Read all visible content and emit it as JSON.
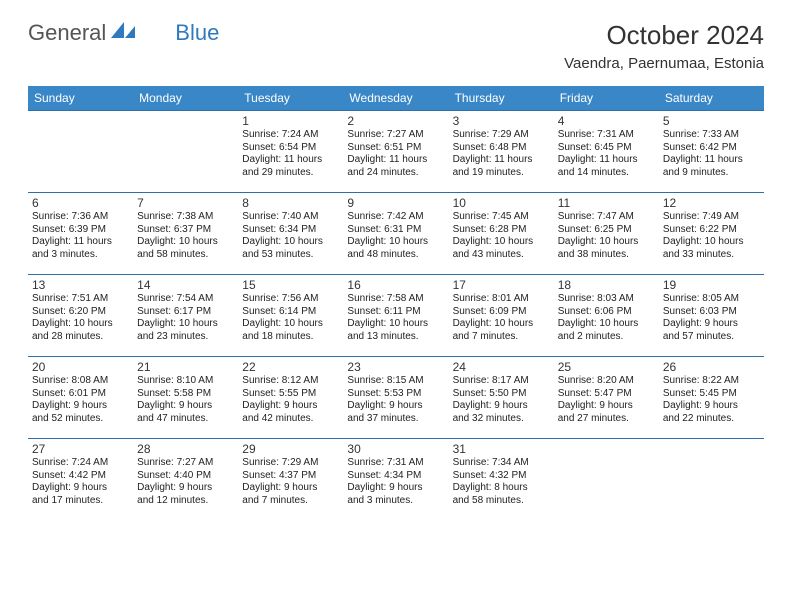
{
  "branding": {
    "logo_general": "General",
    "logo_blue": "Blue",
    "logo_icon_color": "#2f7abf"
  },
  "header": {
    "month_title": "October 2024",
    "location": "Vaendra, Paernumaa, Estonia"
  },
  "calendar": {
    "type": "table",
    "header_bg": "#3a87c8",
    "header_fg": "#ffffff",
    "row_border_color": "#2f6fa8",
    "day_headers": [
      "Sunday",
      "Monday",
      "Tuesday",
      "Wednesday",
      "Thursday",
      "Friday",
      "Saturday"
    ],
    "weeks": [
      [
        null,
        null,
        {
          "n": "1",
          "sr": "Sunrise: 7:24 AM",
          "ss": "Sunset: 6:54 PM",
          "dl1": "Daylight: 11 hours",
          "dl2": "and 29 minutes."
        },
        {
          "n": "2",
          "sr": "Sunrise: 7:27 AM",
          "ss": "Sunset: 6:51 PM",
          "dl1": "Daylight: 11 hours",
          "dl2": "and 24 minutes."
        },
        {
          "n": "3",
          "sr": "Sunrise: 7:29 AM",
          "ss": "Sunset: 6:48 PM",
          "dl1": "Daylight: 11 hours",
          "dl2": "and 19 minutes."
        },
        {
          "n": "4",
          "sr": "Sunrise: 7:31 AM",
          "ss": "Sunset: 6:45 PM",
          "dl1": "Daylight: 11 hours",
          "dl2": "and 14 minutes."
        },
        {
          "n": "5",
          "sr": "Sunrise: 7:33 AM",
          "ss": "Sunset: 6:42 PM",
          "dl1": "Daylight: 11 hours",
          "dl2": "and 9 minutes."
        }
      ],
      [
        {
          "n": "6",
          "sr": "Sunrise: 7:36 AM",
          "ss": "Sunset: 6:39 PM",
          "dl1": "Daylight: 11 hours",
          "dl2": "and 3 minutes."
        },
        {
          "n": "7",
          "sr": "Sunrise: 7:38 AM",
          "ss": "Sunset: 6:37 PM",
          "dl1": "Daylight: 10 hours",
          "dl2": "and 58 minutes."
        },
        {
          "n": "8",
          "sr": "Sunrise: 7:40 AM",
          "ss": "Sunset: 6:34 PM",
          "dl1": "Daylight: 10 hours",
          "dl2": "and 53 minutes."
        },
        {
          "n": "9",
          "sr": "Sunrise: 7:42 AM",
          "ss": "Sunset: 6:31 PM",
          "dl1": "Daylight: 10 hours",
          "dl2": "and 48 minutes."
        },
        {
          "n": "10",
          "sr": "Sunrise: 7:45 AM",
          "ss": "Sunset: 6:28 PM",
          "dl1": "Daylight: 10 hours",
          "dl2": "and 43 minutes."
        },
        {
          "n": "11",
          "sr": "Sunrise: 7:47 AM",
          "ss": "Sunset: 6:25 PM",
          "dl1": "Daylight: 10 hours",
          "dl2": "and 38 minutes."
        },
        {
          "n": "12",
          "sr": "Sunrise: 7:49 AM",
          "ss": "Sunset: 6:22 PM",
          "dl1": "Daylight: 10 hours",
          "dl2": "and 33 minutes."
        }
      ],
      [
        {
          "n": "13",
          "sr": "Sunrise: 7:51 AM",
          "ss": "Sunset: 6:20 PM",
          "dl1": "Daylight: 10 hours",
          "dl2": "and 28 minutes."
        },
        {
          "n": "14",
          "sr": "Sunrise: 7:54 AM",
          "ss": "Sunset: 6:17 PM",
          "dl1": "Daylight: 10 hours",
          "dl2": "and 23 minutes."
        },
        {
          "n": "15",
          "sr": "Sunrise: 7:56 AM",
          "ss": "Sunset: 6:14 PM",
          "dl1": "Daylight: 10 hours",
          "dl2": "and 18 minutes."
        },
        {
          "n": "16",
          "sr": "Sunrise: 7:58 AM",
          "ss": "Sunset: 6:11 PM",
          "dl1": "Daylight: 10 hours",
          "dl2": "and 13 minutes."
        },
        {
          "n": "17",
          "sr": "Sunrise: 8:01 AM",
          "ss": "Sunset: 6:09 PM",
          "dl1": "Daylight: 10 hours",
          "dl2": "and 7 minutes."
        },
        {
          "n": "18",
          "sr": "Sunrise: 8:03 AM",
          "ss": "Sunset: 6:06 PM",
          "dl1": "Daylight: 10 hours",
          "dl2": "and 2 minutes."
        },
        {
          "n": "19",
          "sr": "Sunrise: 8:05 AM",
          "ss": "Sunset: 6:03 PM",
          "dl1": "Daylight: 9 hours",
          "dl2": "and 57 minutes."
        }
      ],
      [
        {
          "n": "20",
          "sr": "Sunrise: 8:08 AM",
          "ss": "Sunset: 6:01 PM",
          "dl1": "Daylight: 9 hours",
          "dl2": "and 52 minutes."
        },
        {
          "n": "21",
          "sr": "Sunrise: 8:10 AM",
          "ss": "Sunset: 5:58 PM",
          "dl1": "Daylight: 9 hours",
          "dl2": "and 47 minutes."
        },
        {
          "n": "22",
          "sr": "Sunrise: 8:12 AM",
          "ss": "Sunset: 5:55 PM",
          "dl1": "Daylight: 9 hours",
          "dl2": "and 42 minutes."
        },
        {
          "n": "23",
          "sr": "Sunrise: 8:15 AM",
          "ss": "Sunset: 5:53 PM",
          "dl1": "Daylight: 9 hours",
          "dl2": "and 37 minutes."
        },
        {
          "n": "24",
          "sr": "Sunrise: 8:17 AM",
          "ss": "Sunset: 5:50 PM",
          "dl1": "Daylight: 9 hours",
          "dl2": "and 32 minutes."
        },
        {
          "n": "25",
          "sr": "Sunrise: 8:20 AM",
          "ss": "Sunset: 5:47 PM",
          "dl1": "Daylight: 9 hours",
          "dl2": "and 27 minutes."
        },
        {
          "n": "26",
          "sr": "Sunrise: 8:22 AM",
          "ss": "Sunset: 5:45 PM",
          "dl1": "Daylight: 9 hours",
          "dl2": "and 22 minutes."
        }
      ],
      [
        {
          "n": "27",
          "sr": "Sunrise: 7:24 AM",
          "ss": "Sunset: 4:42 PM",
          "dl1": "Daylight: 9 hours",
          "dl2": "and 17 minutes."
        },
        {
          "n": "28",
          "sr": "Sunrise: 7:27 AM",
          "ss": "Sunset: 4:40 PM",
          "dl1": "Daylight: 9 hours",
          "dl2": "and 12 minutes."
        },
        {
          "n": "29",
          "sr": "Sunrise: 7:29 AM",
          "ss": "Sunset: 4:37 PM",
          "dl1": "Daylight: 9 hours",
          "dl2": "and 7 minutes."
        },
        {
          "n": "30",
          "sr": "Sunrise: 7:31 AM",
          "ss": "Sunset: 4:34 PM",
          "dl1": "Daylight: 9 hours",
          "dl2": "and 3 minutes."
        },
        {
          "n": "31",
          "sr": "Sunrise: 7:34 AM",
          "ss": "Sunset: 4:32 PM",
          "dl1": "Daylight: 8 hours",
          "dl2": "and 58 minutes."
        },
        null,
        null
      ]
    ]
  }
}
